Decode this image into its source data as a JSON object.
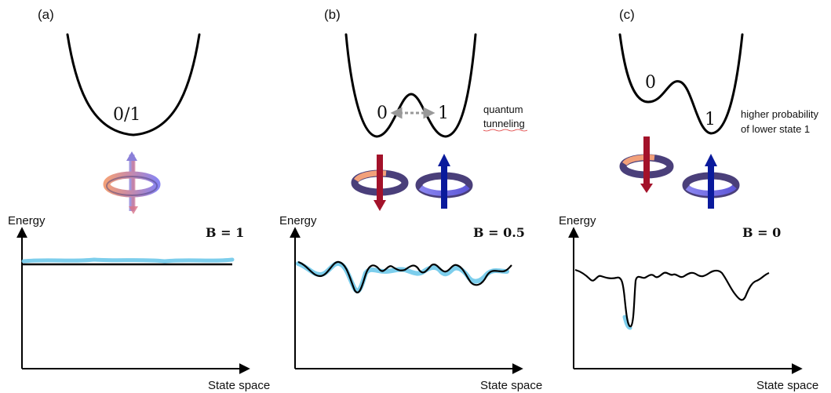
{
  "panels": [
    {
      "id": "a",
      "label": "(a)",
      "well_label": "0/1",
      "field_label": "B = 1",
      "y_axis": "Energy",
      "x_axis": "State space"
    },
    {
      "id": "b",
      "label": "(b)",
      "left_state": "0",
      "right_state": "1",
      "note_lines": [
        "quantum",
        "tunneling"
      ],
      "field_label": "B = 0.5",
      "y_axis": "Energy",
      "x_axis": "State space"
    },
    {
      "id": "c",
      "label": "(c)",
      "left_state": "0",
      "right_state": "1",
      "note_lines": [
        "higher probability",
        "of lower state 1"
      ],
      "field_label": "B = 0",
      "y_axis": "Energy",
      "x_axis": "State space"
    }
  ],
  "colors": {
    "spin_up": "#0a1a9c",
    "spin_down": "#a3122a",
    "ring_dark": "#4a3f7a",
    "ring_light": "#8a85f0",
    "ring_salmon": "#f2a07a",
    "glow": "#6fc9ea",
    "tunnel_arrow": "#999999"
  },
  "icons": [
    "spin-superposition-icon",
    "spin-down-icon",
    "spin-up-icon",
    "tunneling-arrow-icon"
  ]
}
